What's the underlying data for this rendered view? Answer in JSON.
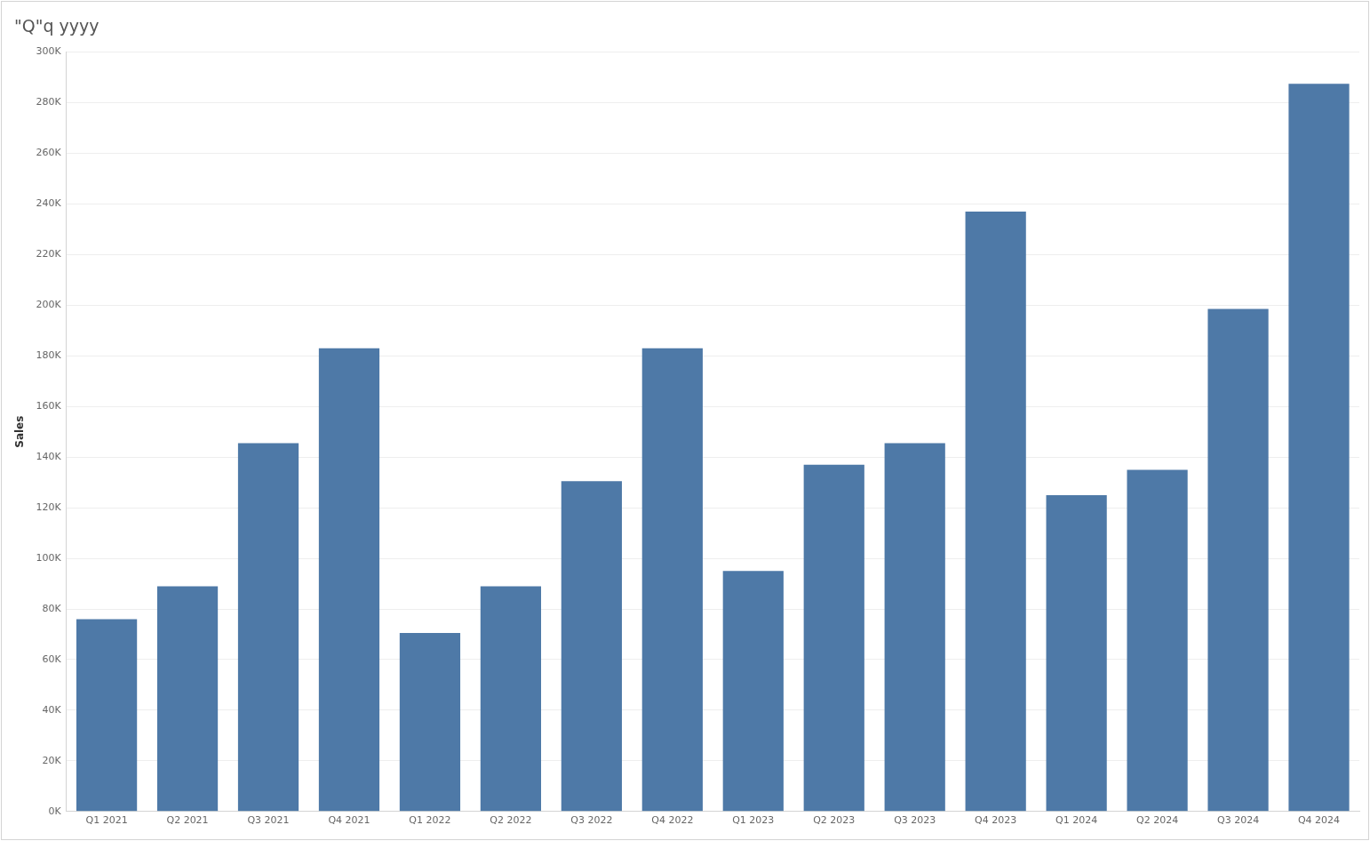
{
  "chart_data": {
    "type": "bar",
    "title": "\"Q\"q yyyy",
    "ylabel": "Sales",
    "categories": [
      "Q1 2021",
      "Q2 2021",
      "Q3 2021",
      "Q4 2021",
      "Q1 2022",
      "Q2 2022",
      "Q3 2022",
      "Q4 2022",
      "Q1 2023",
      "Q2 2023",
      "Q3 2023",
      "Q4 2023",
      "Q1 2024",
      "Q2 2024",
      "Q3 2024",
      "Q4 2024"
    ],
    "values": [
      76000,
      89000,
      145500,
      183000,
      70500,
      89000,
      130500,
      183000,
      95000,
      137000,
      145500,
      237000,
      125000,
      135000,
      198500,
      287500
    ],
    "color": "#4e79a7",
    "ylim": [
      0,
      300000
    ],
    "yticks": [
      {
        "value": 0,
        "label": "0K"
      },
      {
        "value": 20000,
        "label": "20K"
      },
      {
        "value": 40000,
        "label": "40K"
      },
      {
        "value": 60000,
        "label": "60K"
      },
      {
        "value": 80000,
        "label": "80K"
      },
      {
        "value": 100000,
        "label": "100K"
      },
      {
        "value": 120000,
        "label": "120K"
      },
      {
        "value": 140000,
        "label": "140K"
      },
      {
        "value": 160000,
        "label": "160K"
      },
      {
        "value": 180000,
        "label": "180K"
      },
      {
        "value": 200000,
        "label": "200K"
      },
      {
        "value": 220000,
        "label": "220K"
      },
      {
        "value": 240000,
        "label": "240K"
      },
      {
        "value": 260000,
        "label": "260K"
      },
      {
        "value": 280000,
        "label": "280K"
      },
      {
        "value": 300000,
        "label": "300K"
      }
    ],
    "grid": "y",
    "legend": false
  }
}
